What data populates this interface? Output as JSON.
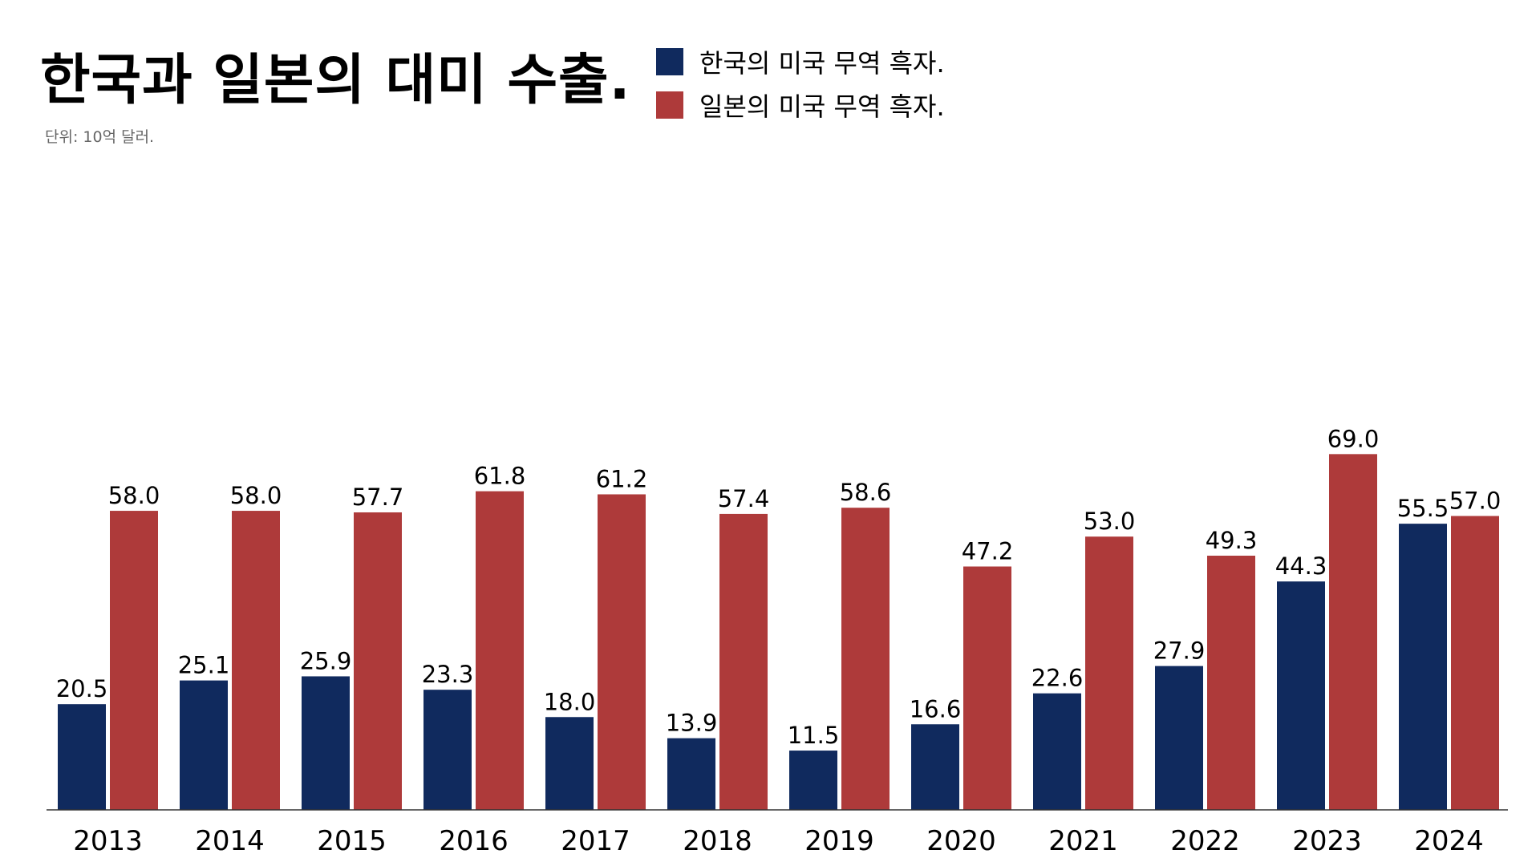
{
  "title": "한국과 일본의 대미 수출.",
  "subtitle": "단위: 10억 달러.",
  "legend": [
    {
      "label": "한국의 미국 무역 흑자.",
      "color": "#102a5e"
    },
    {
      "label": "일본의 미국 무역 흑자.",
      "color": "#ae3a3a"
    }
  ],
  "chart_data": {
    "type": "bar",
    "title": "한국과 일본의 대미 수출.",
    "subtitle": "단위: 10억 달러.",
    "categories": [
      "2013",
      "2014",
      "2015",
      "2016",
      "2017",
      "2018",
      "2019",
      "2020",
      "2021",
      "2022",
      "2023",
      "2024"
    ],
    "series": [
      {
        "name": "한국의 미국 무역 흑자.",
        "color": "#102a5e",
        "values": [
          20.5,
          25.1,
          25.9,
          23.3,
          18.0,
          13.9,
          11.5,
          16.6,
          22.6,
          27.9,
          44.3,
          55.5
        ]
      },
      {
        "name": "일본의 미국 무역 흑자.",
        "color": "#ae3a3a",
        "values": [
          58.0,
          58.0,
          57.7,
          61.8,
          61.2,
          57.4,
          58.6,
          47.2,
          53.0,
          49.3,
          69.0,
          57.0
        ]
      }
    ],
    "ylim": [
      0,
      75
    ],
    "grid": false,
    "legend_position": "top"
  }
}
